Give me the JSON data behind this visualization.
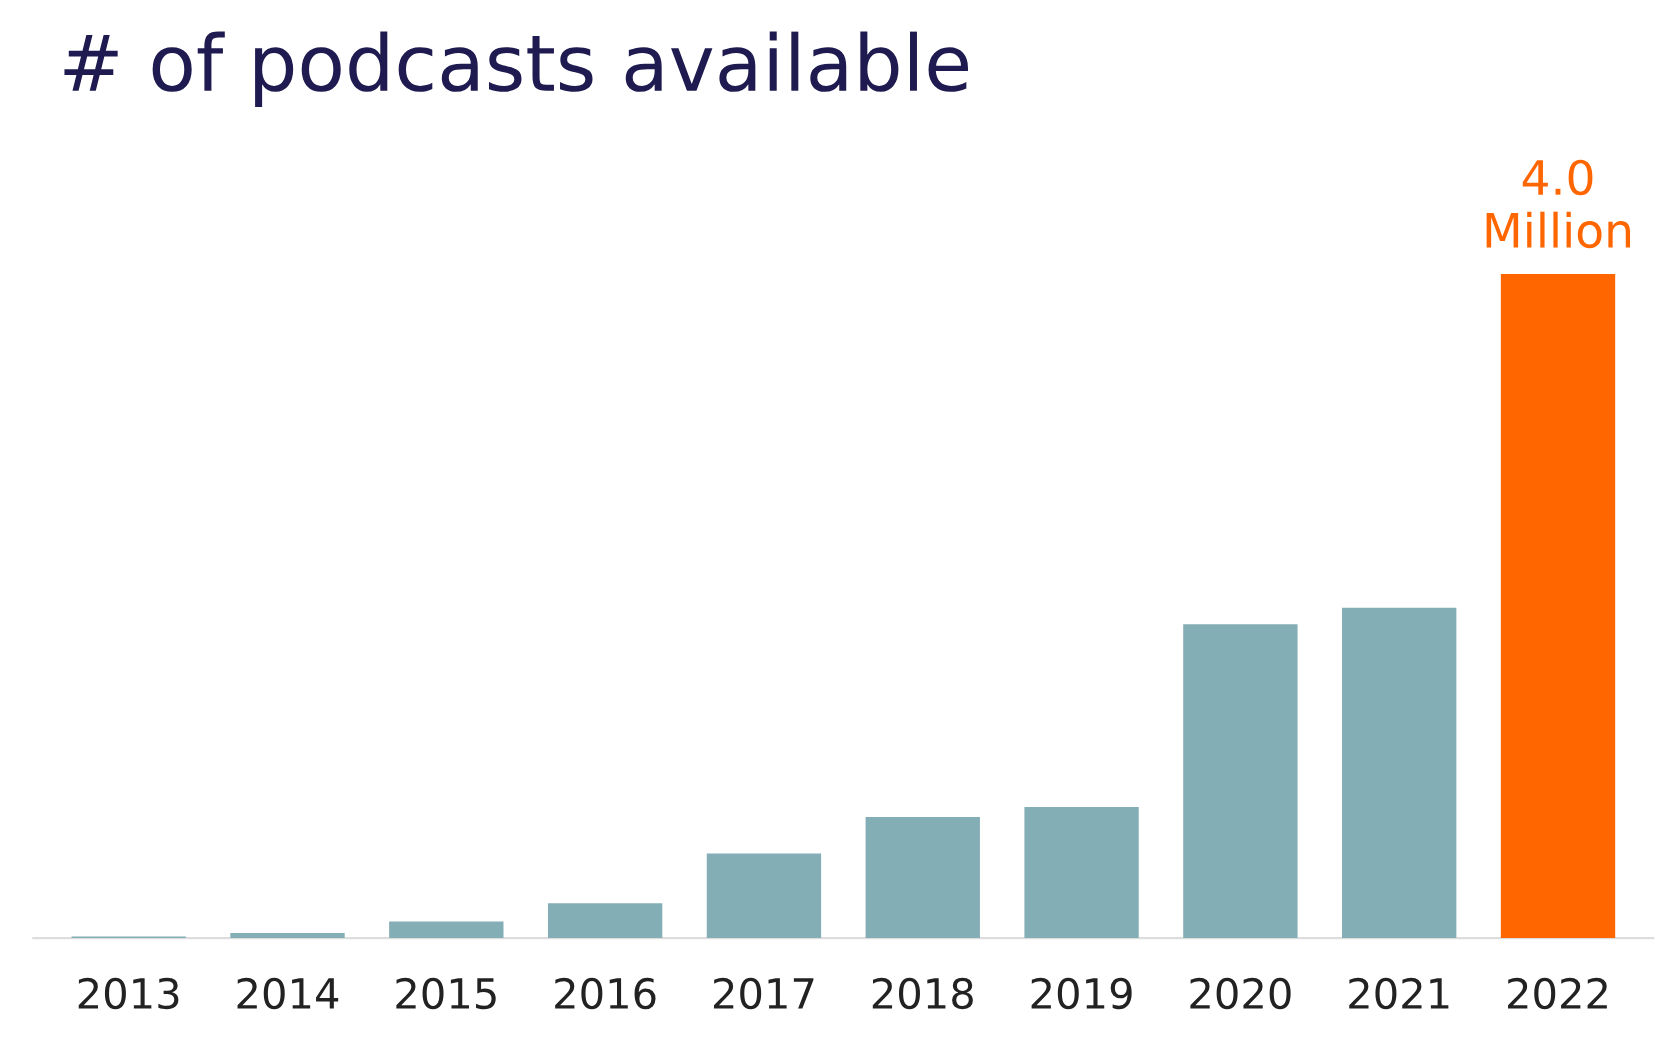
{
  "chart_data": {
    "type": "bar",
    "title": "# of podcasts available",
    "categories": [
      "2013",
      "2014",
      "2015",
      "2016",
      "2017",
      "2018",
      "2019",
      "2020",
      "2021",
      "2022"
    ],
    "values": [
      0.01,
      0.03,
      0.1,
      0.21,
      0.51,
      0.73,
      0.79,
      1.89,
      1.99,
      4.0
    ],
    "colors": [
      "#83aeb5",
      "#83aeb5",
      "#83aeb5",
      "#83aeb5",
      "#83aeb5",
      "#83aeb5",
      "#83aeb5",
      "#83aeb5",
      "#83aeb5",
      "#ff6600"
    ],
    "value_labels": [
      null,
      null,
      null,
      null,
      null,
      null,
      null,
      null,
      null,
      "4.0\nMillion"
    ],
    "grid": false,
    "legend": false
  }
}
